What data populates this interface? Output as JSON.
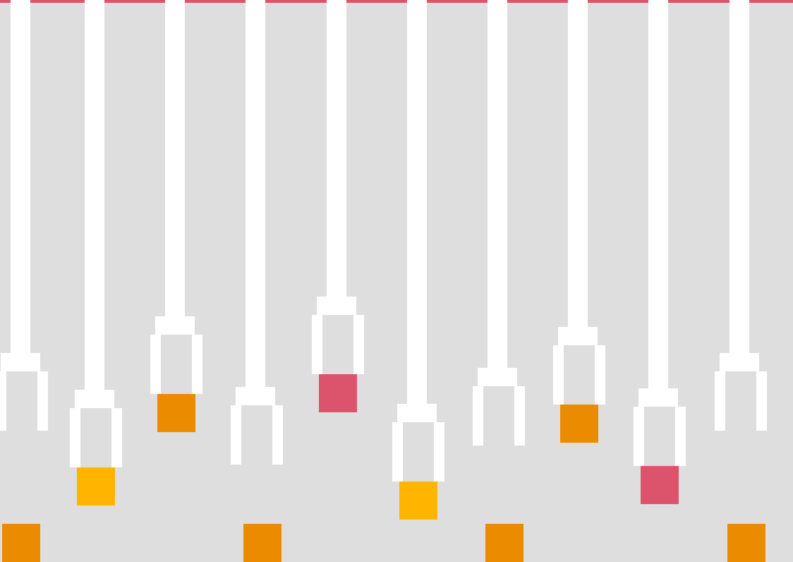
{
  "colors": {
    "background": "#dedede",
    "top_bar": "#dc546c",
    "claw": "#ffffff",
    "block_orange": "#eb8c00",
    "block_yellow": "#ffb500",
    "block_red": "#dc546c"
  },
  "claws": [
    {
      "name": "claw-1",
      "holding": null
    },
    {
      "name": "claw-2",
      "holding": "yellow"
    },
    {
      "name": "claw-3",
      "holding": "orange"
    },
    {
      "name": "claw-4",
      "holding": null
    },
    {
      "name": "claw-5",
      "holding": "red"
    },
    {
      "name": "claw-6",
      "holding": "yellow"
    },
    {
      "name": "claw-7",
      "holding": null
    },
    {
      "name": "claw-8",
      "holding": "orange"
    },
    {
      "name": "claw-9",
      "holding": "red"
    },
    {
      "name": "claw-10",
      "holding": null
    }
  ],
  "floor_blocks": [
    "orange",
    "orange",
    "orange",
    "orange"
  ]
}
